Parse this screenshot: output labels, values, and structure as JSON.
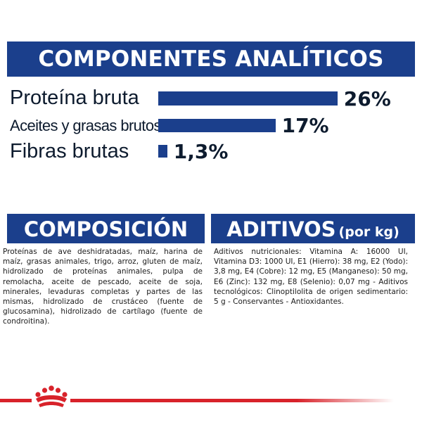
{
  "analytics": {
    "title": "COMPONENTES ANALÍTICOS",
    "items": [
      {
        "label": "Proteína bruta",
        "value": "26%",
        "percent": 26
      },
      {
        "label": "Aceites y grasas brutos",
        "value": "17%",
        "percent": 17
      },
      {
        "label": "Fibras brutas",
        "value": "1,3%",
        "percent": 1.3
      }
    ]
  },
  "composition": {
    "title": "COMPOSICIÓN",
    "text": "Proteínas de ave deshidratadas, maíz, harina de maíz, grasas animales, trigo, arroz, gluten de maíz, hidrolizado de proteínas animales, pulpa de remolacha, aceite de pescado, aceite de soja, minerales, levaduras completas y partes de las mismas, hidrolizado de crustáceo (fuente de glucosamina), hidrolizado de cartílago (fuente de condroitina)."
  },
  "additives": {
    "title": "ADITIVOS",
    "unit": "(por kg)",
    "text": "Aditivos nutricionales: Vitamina A: 16000 UI, Vitamina D3: 1000 UI, E1 (Hierro): 38 mg, E2 (Yodo): 3,8 mg, E4 (Cobre): 12 mg, E5 (Manganeso): 50 mg, E6 (Zinc): 132 mg, E8 (Selenio): 0,07 mg - Aditivos tecnológicos: Clinoptilolita de origen sedimentario: 5 g - Conservantes - Antioxidantes."
  },
  "colors": {
    "brand_blue": "#1b3f8c",
    "brand_red": "#d8222a"
  },
  "icons": {
    "logo": "crown-icon"
  }
}
